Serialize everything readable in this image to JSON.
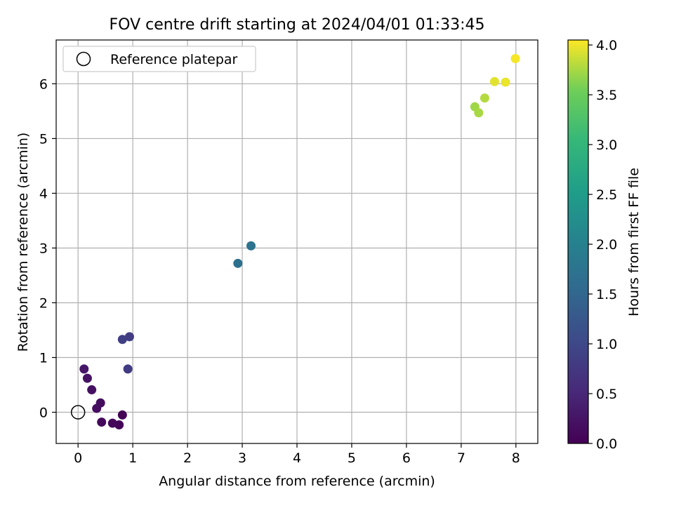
{
  "chart_data": {
    "type": "scatter",
    "title": "FOV centre drift starting at 2024/04/01 01:33:45",
    "xlabel": "Angular distance from reference (arcmin)",
    "ylabel": "Rotation from reference (arcmin)",
    "xlim": [
      -0.4,
      8.4
    ],
    "ylim": [
      -0.57,
      6.8
    ],
    "x_ticks": [
      "0",
      "1",
      "2",
      "3",
      "4",
      "5",
      "6",
      "7",
      "8"
    ],
    "y_ticks": [
      "0",
      "1",
      "2",
      "3",
      "4",
      "5",
      "6"
    ],
    "grid": true,
    "legend": {
      "location": "upper left",
      "entries": [
        {
          "label": "Reference platepar",
          "marker": "open-circle"
        }
      ]
    },
    "reference_point": {
      "x": 0,
      "y": 0
    },
    "colorbar": {
      "label": "Hours from first FF file",
      "range": [
        0,
        4.05
      ],
      "ticks": [
        "0.0",
        "0.5",
        "1.0",
        "1.5",
        "2.0",
        "2.5",
        "3.0",
        "3.5",
        "4.0"
      ],
      "colormap": "viridis"
    },
    "points": [
      {
        "x": 0.81,
        "y": -0.05,
        "hours": 0.02
      },
      {
        "x": 0.75,
        "y": -0.23,
        "hours": 0.05
      },
      {
        "x": 0.63,
        "y": -0.2,
        "hours": 0.08
      },
      {
        "x": 0.43,
        "y": -0.18,
        "hours": 0.11
      },
      {
        "x": 0.41,
        "y": 0.17,
        "hours": 0.14
      },
      {
        "x": 0.34,
        "y": 0.07,
        "hours": 0.17
      },
      {
        "x": 0.25,
        "y": 0.41,
        "hours": 0.2
      },
      {
        "x": 0.17,
        "y": 0.62,
        "hours": 0.23
      },
      {
        "x": 0.11,
        "y": 0.79,
        "hours": 0.27
      },
      {
        "x": 0.91,
        "y": 0.79,
        "hours": 0.8
      },
      {
        "x": 0.94,
        "y": 1.38,
        "hours": 0.83
      },
      {
        "x": 0.81,
        "y": 1.33,
        "hours": 0.86
      },
      {
        "x": 2.92,
        "y": 2.72,
        "hours": 1.68
      },
      {
        "x": 3.16,
        "y": 3.04,
        "hours": 1.71
      },
      {
        "x": 7.25,
        "y": 5.58,
        "hours": 3.72
      },
      {
        "x": 7.32,
        "y": 5.47,
        "hours": 3.75
      },
      {
        "x": 7.43,
        "y": 5.74,
        "hours": 3.79
      },
      {
        "x": 7.61,
        "y": 6.04,
        "hours": 3.95
      },
      {
        "x": 7.81,
        "y": 6.03,
        "hours": 3.98
      },
      {
        "x": 7.99,
        "y": 6.46,
        "hours": 4.02
      }
    ]
  }
}
